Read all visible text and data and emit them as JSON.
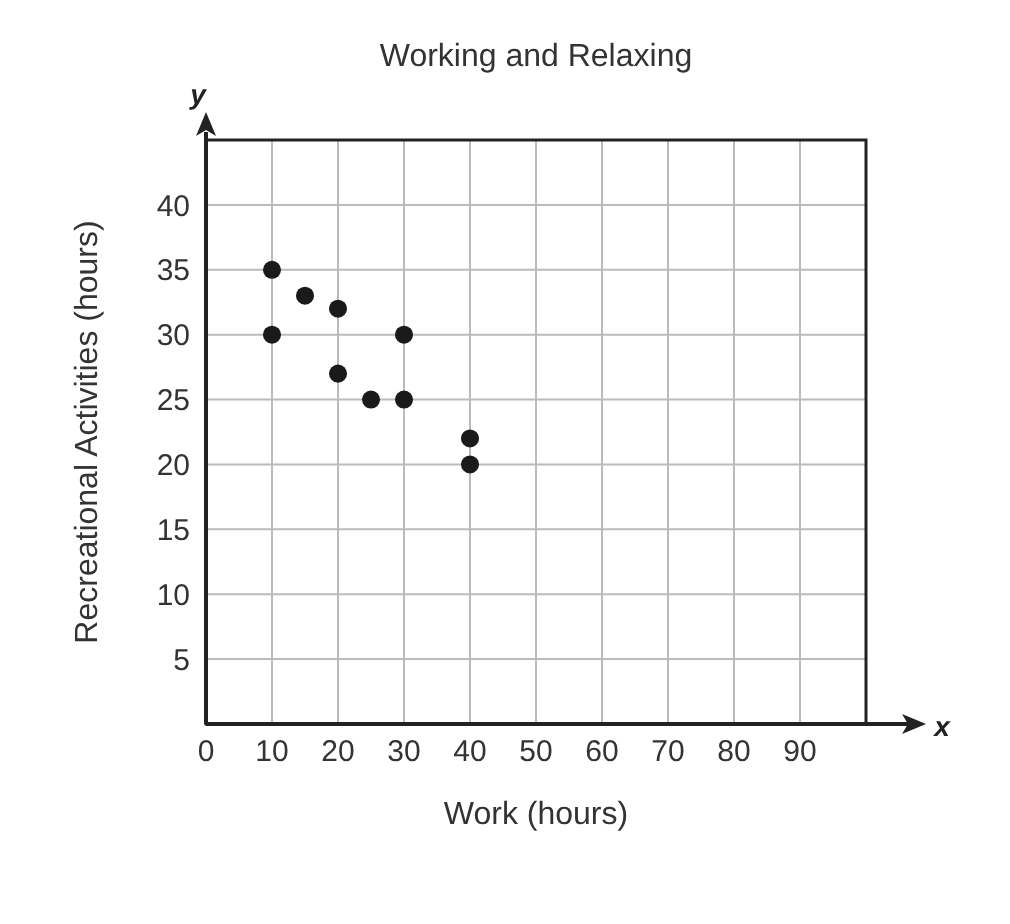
{
  "chart_data": {
    "type": "scatter",
    "title": "Working and Relaxing",
    "xlabel": "Work (hours)",
    "ylabel": "Recreational Activities (hours)",
    "annotations": [
      "x",
      "y"
    ],
    "x": [
      10,
      10,
      15,
      20,
      20,
      25,
      30,
      30,
      40,
      40
    ],
    "values": [
      35,
      30,
      33,
      32,
      27,
      25,
      30,
      25,
      22,
      20
    ],
    "color": "#1a1a1a",
    "marker": "circle",
    "xlim": [
      0,
      100
    ],
    "xticks": [
      0,
      10,
      20,
      30,
      40,
      50,
      60,
      70,
      80,
      90
    ],
    "ylim": [
      0,
      45
    ],
    "yticks": [
      5,
      10,
      15,
      20,
      25,
      30,
      35,
      40
    ],
    "grid": true
  }
}
